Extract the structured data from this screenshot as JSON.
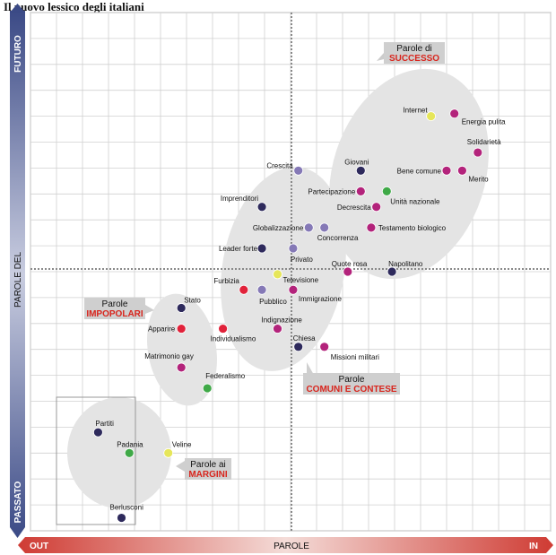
{
  "title": "Il nuovo lessico degli italiani",
  "chart_data": {
    "type": "scatter",
    "title": "Il nuovo lessico degli italiani",
    "xlabel": "PAROLE",
    "x_ends": {
      "left": "OUT",
      "right": "IN"
    },
    "ylabel": "PAROLE DEL",
    "y_ends": {
      "top": "FUTURO",
      "bottom": "PASSATO"
    },
    "xlim": [
      0,
      20
    ],
    "ylim": [
      0,
      20
    ],
    "grid": true,
    "colors": {
      "navy": "#2e2a5c",
      "magenta": "#b3237b",
      "lavender": "#8579b6",
      "red": "#e1223a",
      "green": "#3fa947",
      "yellow": "#e6e65a",
      "cloud": "#e4e4e4",
      "axis_blue": "#3b4a86",
      "accent_red": "#d8251d"
    },
    "groups": [
      {
        "line1": "Parole di",
        "line2": "SUCCESSO"
      },
      {
        "line1": "Parole",
        "line2": "IMPOPOLARI"
      },
      {
        "line1": "Parole",
        "line2": "COMUNI E CONTESE"
      },
      {
        "line1": "Parole ai",
        "line2": "MARGINI"
      }
    ],
    "points": [
      {
        "label": "Internet",
        "x": 15.4,
        "y": 16.0,
        "color": "yellow"
      },
      {
        "label": "Energia pulita",
        "x": 16.3,
        "y": 16.1,
        "color": "magenta"
      },
      {
        "label": "Solidarietà",
        "x": 17.2,
        "y": 14.6,
        "color": "magenta"
      },
      {
        "label": "Bene comune",
        "x": 16.0,
        "y": 13.9,
        "color": "magenta"
      },
      {
        "label": "Merito",
        "x": 16.6,
        "y": 13.9,
        "color": "magenta"
      },
      {
        "label": "Giovani",
        "x": 12.7,
        "y": 13.9,
        "color": "navy"
      },
      {
        "label": "Crescita",
        "x": 10.3,
        "y": 13.9,
        "color": "lavender"
      },
      {
        "label": "Partecipazione",
        "x": 12.7,
        "y": 13.1,
        "color": "magenta"
      },
      {
        "label": "Unità nazionale",
        "x": 13.7,
        "y": 13.1,
        "color": "green"
      },
      {
        "label": "Decrescita",
        "x": 13.3,
        "y": 12.5,
        "color": "magenta"
      },
      {
        "label": "Imprenditori",
        "x": 8.9,
        "y": 12.5,
        "color": "navy"
      },
      {
        "label": "Globalizzazione",
        "x": 10.7,
        "y": 11.7,
        "color": "lavender"
      },
      {
        "label": "Concorrenza",
        "x": 11.3,
        "y": 11.7,
        "color": "lavender"
      },
      {
        "label": "Testamento biologico",
        "x": 13.1,
        "y": 11.7,
        "color": "magenta"
      },
      {
        "label": "Leader forte",
        "x": 8.9,
        "y": 10.9,
        "color": "navy"
      },
      {
        "label": "Privato",
        "x": 10.1,
        "y": 10.9,
        "color": "lavender"
      },
      {
        "label": "Quote rosa",
        "x": 12.2,
        "y": 10.0,
        "color": "magenta"
      },
      {
        "label": "Napolitano",
        "x": 13.9,
        "y": 10.0,
        "color": "navy"
      },
      {
        "label": "Televisione",
        "x": 9.5,
        "y": 9.9,
        "color": "yellow"
      },
      {
        "label": "Furbizia",
        "x": 8.2,
        "y": 9.3,
        "color": "red"
      },
      {
        "label": "Pubblico",
        "x": 8.9,
        "y": 9.3,
        "color": "lavender"
      },
      {
        "label": "Immigrazione",
        "x": 10.1,
        "y": 9.3,
        "color": "magenta"
      },
      {
        "label": "Stato",
        "x": 5.8,
        "y": 8.6,
        "color": "navy"
      },
      {
        "label": "Apparire",
        "x": 5.8,
        "y": 7.8,
        "color": "red"
      },
      {
        "label": "Individualismo",
        "x": 7.4,
        "y": 7.8,
        "color": "red"
      },
      {
        "label": "Indignazione",
        "x": 9.5,
        "y": 7.8,
        "color": "magenta"
      },
      {
        "label": "Chiesa",
        "x": 10.3,
        "y": 7.1,
        "color": "navy"
      },
      {
        "label": "Missioni militari",
        "x": 11.3,
        "y": 7.1,
        "color": "magenta"
      },
      {
        "label": "Matrimonio gay",
        "x": 5.8,
        "y": 6.3,
        "color": "magenta"
      },
      {
        "label": "Federalismo",
        "x": 6.8,
        "y": 5.5,
        "color": "green"
      },
      {
        "label": "Partiti",
        "x": 2.6,
        "y": 3.8,
        "color": "navy"
      },
      {
        "label": "Padania",
        "x": 3.8,
        "y": 3.0,
        "color": "green"
      },
      {
        "label": "Veline",
        "x": 5.3,
        "y": 3.0,
        "color": "yellow"
      },
      {
        "label": "Berlusconi",
        "x": 3.5,
        "y": 0.5,
        "color": "navy"
      }
    ]
  }
}
